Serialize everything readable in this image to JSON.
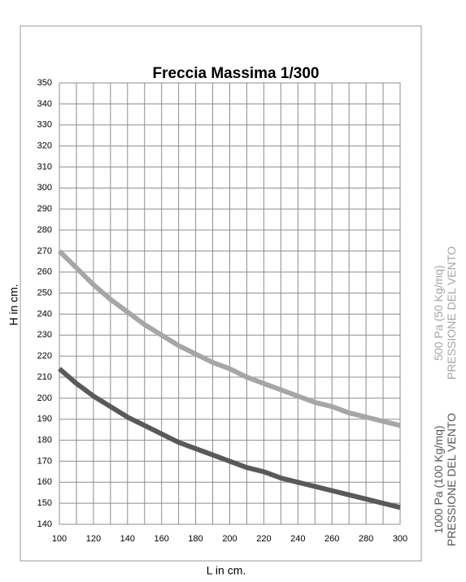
{
  "chart_data": {
    "type": "line",
    "title": "Freccia Massima 1/300",
    "xlabel": "L in cm.",
    "ylabel": "H in cm.",
    "x": [
      100,
      110,
      120,
      130,
      140,
      150,
      160,
      170,
      180,
      190,
      200,
      210,
      220,
      230,
      240,
      250,
      260,
      270,
      280,
      290,
      300
    ],
    "series": [
      {
        "name": "500 Pa (50 Kg/mq)\nPRESSIONE DEL VENTO",
        "color": "#a6a6a6",
        "values": [
          270,
          262,
          254,
          247,
          241,
          235,
          230,
          225,
          221,
          217,
          214,
          210,
          207,
          204,
          201,
          198,
          196,
          193,
          191,
          189,
          187
        ]
      },
      {
        "name": "1000 Pa (100 Kg/mq)\nPRESSIONE DEL VENTO",
        "color": "#595959",
        "values": [
          214,
          207,
          201,
          196,
          191,
          187,
          183,
          179,
          176,
          173,
          170,
          167,
          165,
          162,
          160,
          158,
          156,
          154,
          152,
          150,
          148
        ]
      }
    ],
    "xlim": [
      100,
      300
    ],
    "ylim": [
      140,
      350
    ],
    "xticks": [
      100,
      120,
      140,
      160,
      180,
      200,
      220,
      240,
      260,
      280,
      300
    ],
    "x_minor_ticks": [
      110,
      130,
      150,
      170,
      190,
      210,
      230,
      250,
      270,
      290
    ],
    "yticks": [
      140,
      150,
      160,
      170,
      180,
      190,
      200,
      210,
      220,
      230,
      240,
      250,
      260,
      270,
      280,
      290,
      300,
      310,
      320,
      330,
      340,
      350
    ],
    "grid": true,
    "legend": "right"
  }
}
